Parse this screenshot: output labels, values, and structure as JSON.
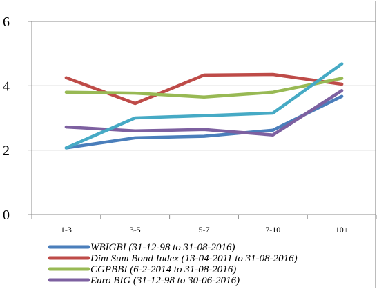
{
  "chart_data": {
    "type": "line",
    "categories": [
      "1-3",
      "3-5",
      "5-7",
      "7-10",
      "10+"
    ],
    "ylim": [
      0,
      6
    ],
    "yticks": [
      "0",
      "2",
      "4",
      "6"
    ],
    "grid": true,
    "legend_position": "bottom",
    "series": [
      {
        "name": "WBIGBI (31-12-98 to 31-08-2016)",
        "color": "#4a7ebb",
        "values": [
          2.07,
          2.38,
          2.43,
          2.62,
          3.67
        ]
      },
      {
        "name": "Dim Sum Bond Index (13-04-2011 to 31-08-2016)",
        "color": "#be4b48",
        "values": [
          4.25,
          3.45,
          4.33,
          4.35,
          4.05
        ]
      },
      {
        "name": "CGPBBI (6-2-2014 to 31-08-2016)",
        "color": "#98b954",
        "values": [
          3.8,
          3.77,
          3.65,
          3.8,
          4.23
        ]
      },
      {
        "name": "Euro BIG (31-12-98 to 30-06-2016)",
        "color": "#7d60a0",
        "values": [
          2.72,
          2.6,
          2.64,
          2.47,
          3.85
        ]
      },
      {
        "name": "",
        "color": "#46aac5",
        "values": [
          2.07,
          3.0,
          3.07,
          3.15,
          4.68
        ]
      }
    ]
  }
}
